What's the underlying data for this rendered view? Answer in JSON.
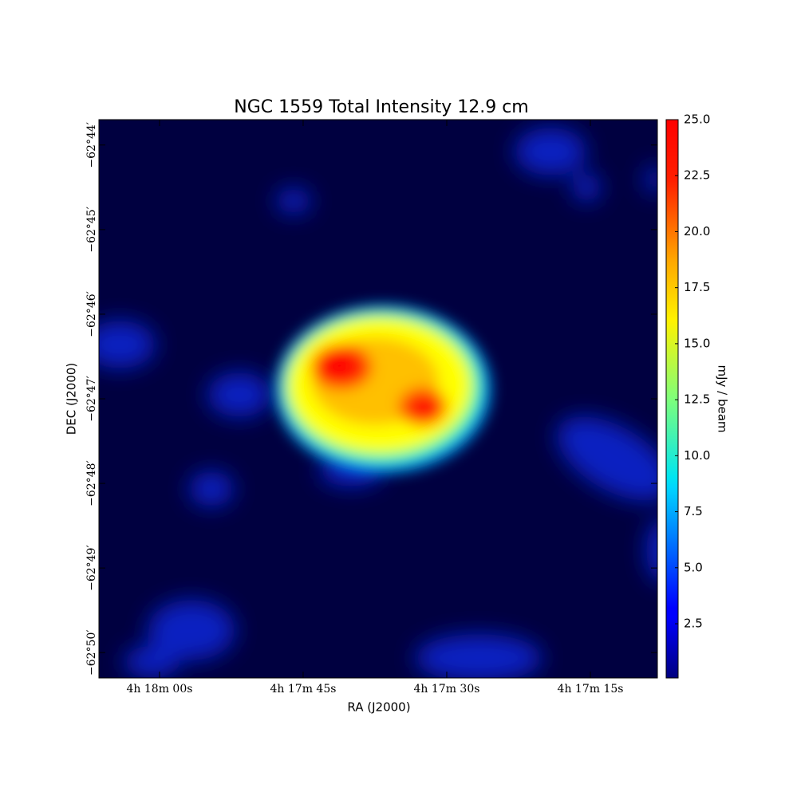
{
  "chart_data": {
    "type": "image",
    "title": "NGC 1559 Total Intensity 12.9 cm",
    "x_label": "RA (J2000)",
    "y_label": "DEC (J2000)",
    "xlim": [
      15486.33,
      15428
    ],
    "xticks": [
      {
        "value": 15480,
        "label": "4h 18m 00s"
      },
      {
        "value": 15465,
        "label": "4h 17m 45s"
      },
      {
        "value": 15450,
        "label": "4h 17m 30s"
      },
      {
        "value": 15435,
        "label": "4h 17m 15s"
      }
    ],
    "ylim": [
      -3770.3,
      -3763.7
    ],
    "yticks": [
      {
        "value": -3764,
        "label": "−62°44′"
      },
      {
        "value": -3765,
        "label": "−62°45′"
      },
      {
        "value": -3766,
        "label": "−62°46′"
      },
      {
        "value": -3767,
        "label": "−62°47′"
      },
      {
        "value": -3768,
        "label": "−62°48′"
      },
      {
        "value": -3769,
        "label": "−62°49′"
      },
      {
        "value": -3770,
        "label": "−62°50′"
      }
    ],
    "colorbar_label": "mJy / beam",
    "clim": [
      0.08,
      25
    ],
    "cticks": [
      2.5,
      {
        "value": 5,
        "label": "5.0"
      },
      7.5,
      {
        "value": 10,
        "label": "10.0"
      },
      12.5,
      {
        "value": 15,
        "label": "15.0"
      },
      17.5,
      {
        "value": 20,
        "label": "20.0"
      },
      22.5,
      {
        "value": 25,
        "label": "25.0"
      }
    ]
  }
}
